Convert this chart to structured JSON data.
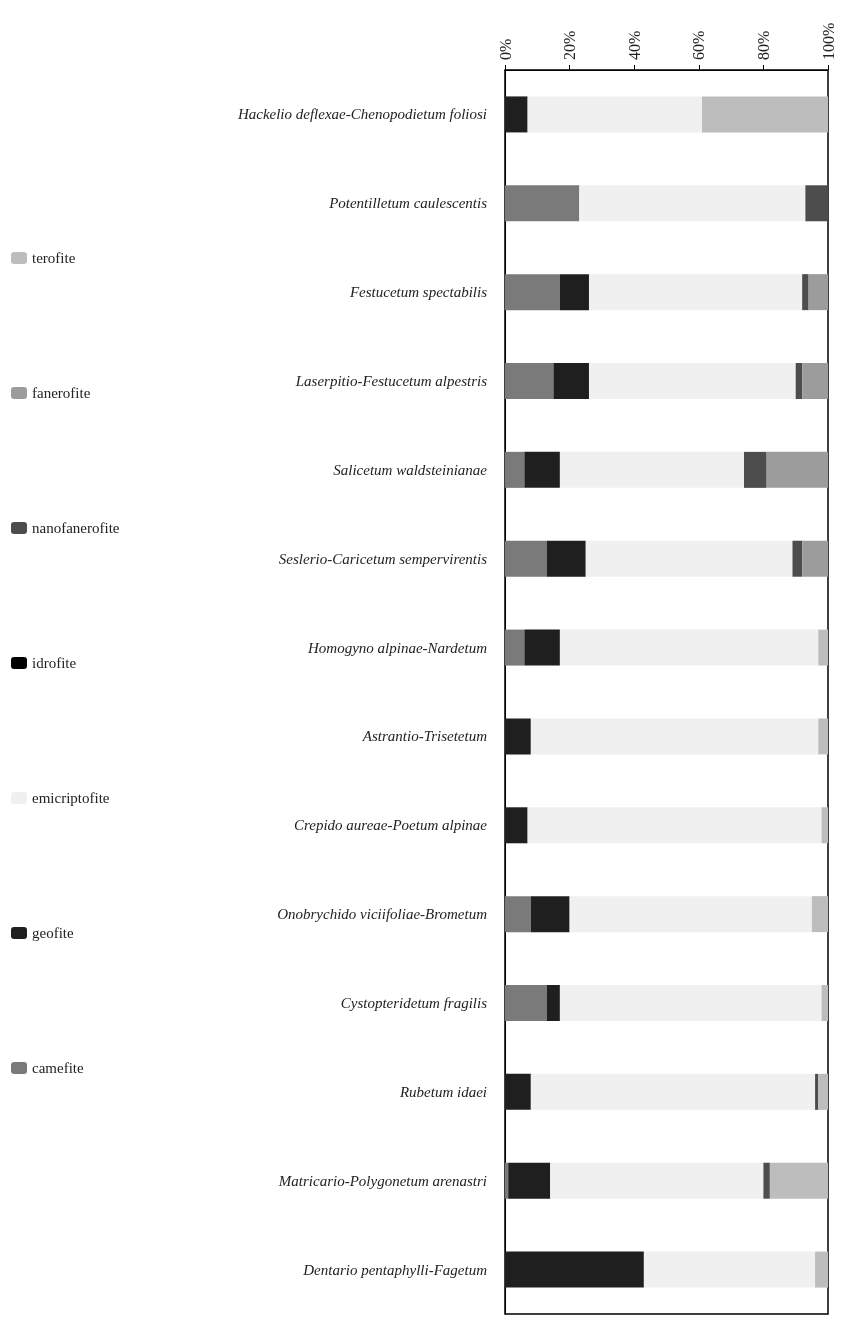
{
  "chart_data": {
    "type": "bar",
    "orientation": "horizontal",
    "stacked": true,
    "legend": "left",
    "grid": false,
    "categories": [
      "Hackelio deflexae-Chenopodietum foliosi",
      "Potentilletum caulescentis",
      "Festucetum spectabilis",
      "Laserpitio-Festucetum alpestris",
      "Salicetum waldsteinianae",
      "Seslerio-Caricetum sempervirentis",
      "Homogyno alpinae-Nardetum",
      "Astrantio-Trisetetum",
      "Crepido aureae-Poetum alpinae",
      "Onobrychido viciifoliae-Brometum",
      "Cystopteridetum fragilis",
      "Rubetum idaei",
      "Matricario-Polygonetum arenastri",
      "Dentario pentaphylli-Fagetum"
    ],
    "xlim": [
      0,
      100
    ],
    "xticks": [
      {
        "value": 0,
        "label": "0%"
      },
      {
        "value": 20,
        "label": "20%"
      },
      {
        "value": 40,
        "label": "40%"
      },
      {
        "value": 60,
        "label": "60%"
      },
      {
        "value": 80,
        "label": "80%"
      },
      {
        "value": 100,
        "label": "100%"
      }
    ],
    "series": [
      {
        "name": "camefite",
        "color": "#7a7a7a",
        "values": [
          0,
          23,
          17,
          15,
          6,
          13,
          6,
          0,
          0,
          8,
          13,
          0,
          1,
          0
        ]
      },
      {
        "name": "geofite",
        "color": "#1f1f1f",
        "values": [
          7,
          0,
          9,
          11,
          11,
          12,
          11,
          8,
          7,
          12,
          4,
          8,
          13,
          43
        ]
      },
      {
        "name": "emicriptofite",
        "color": "#f0f0f0",
        "values": [
          54,
          70,
          66,
          64,
          57,
          64,
          80,
          89,
          91,
          75,
          81,
          88,
          66,
          53
        ]
      },
      {
        "name": "idrofite",
        "color": "#000000",
        "values": [
          0,
          0,
          0,
          0,
          0,
          0,
          0,
          0,
          0,
          0,
          0,
          0,
          0,
          0
        ]
      },
      {
        "name": "nanofanerofite",
        "color": "#4d4d4d",
        "values": [
          0,
          7,
          2,
          2,
          7,
          3,
          0,
          0,
          0,
          0,
          0,
          1,
          2,
          0
        ]
      },
      {
        "name": "fanerofite",
        "color": "#9c9c9c",
        "values": [
          0,
          0,
          6,
          8,
          19,
          8,
          0,
          0,
          0,
          0,
          0,
          0,
          0,
          0
        ]
      },
      {
        "name": "terofite",
        "color": "#bdbdbd",
        "values": [
          39,
          0,
          0,
          0,
          0,
          0,
          3,
          3,
          2,
          5,
          2,
          3,
          18,
          4
        ]
      }
    ]
  }
}
